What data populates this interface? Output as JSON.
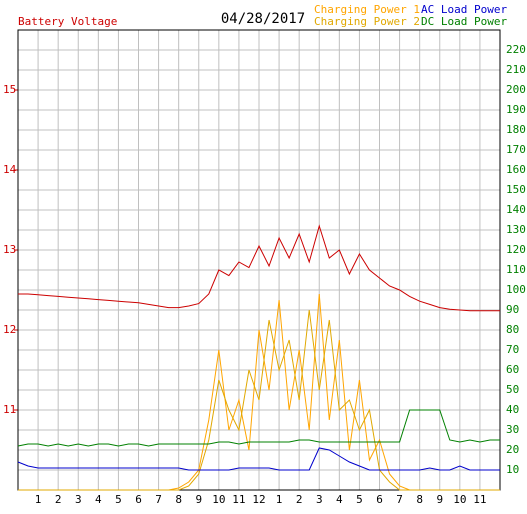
{
  "chart_data": {
    "type": "line",
    "date": "04/28/2017",
    "x": [
      0,
      0.5,
      1,
      1.5,
      2,
      2.5,
      3,
      3.5,
      4,
      4.5,
      5,
      5.5,
      6,
      6.5,
      7,
      7.5,
      8,
      8.5,
      9,
      9.5,
      10,
      10.5,
      11,
      11.5,
      12,
      12.5,
      13,
      13.5,
      14,
      14.5,
      15,
      15.5,
      16,
      16.5,
      17,
      17.5,
      18,
      18.5,
      19,
      19.5,
      20,
      20.5,
      21,
      21.5,
      22,
      22.5,
      23,
      23.5,
      24
    ],
    "xlim": [
      0,
      24
    ],
    "xticks": [
      1,
      2,
      3,
      4,
      5,
      6,
      7,
      8,
      9,
      10,
      11,
      12,
      {
        "value": 13,
        "label": "1"
      },
      {
        "value": 14,
        "label": "2"
      },
      {
        "value": 15,
        "label": "3"
      },
      {
        "value": 16,
        "label": "4"
      },
      {
        "value": 17,
        "label": "5"
      },
      {
        "value": 18,
        "label": "6"
      },
      {
        "value": 19,
        "label": "7"
      },
      {
        "value": 20,
        "label": "8"
      },
      {
        "value": 21,
        "label": "9"
      },
      {
        "value": 22,
        "label": "10"
      },
      {
        "value": 23,
        "label": "11"
      }
    ],
    "ylim": [
      10,
      15.75
    ],
    "yticks": [
      11,
      12,
      13,
      14,
      15
    ],
    "y2lim": [
      0,
      230
    ],
    "y2ticks": [
      10,
      20,
      30,
      40,
      50,
      60,
      70,
      80,
      90,
      100,
      110,
      120,
      130,
      140,
      150,
      160,
      170,
      180,
      190,
      200,
      210,
      220
    ],
    "grid": true,
    "series": [
      {
        "name": "Battery Voltage",
        "color": "#cc0000",
        "axis": "y",
        "values": [
          12.45,
          12.45,
          12.44,
          12.43,
          12.42,
          12.41,
          12.4,
          12.39,
          12.38,
          12.37,
          12.36,
          12.35,
          12.34,
          12.32,
          12.3,
          12.28,
          12.28,
          12.3,
          12.33,
          12.45,
          12.75,
          12.68,
          12.85,
          12.78,
          13.05,
          12.8,
          13.15,
          12.9,
          13.2,
          12.85,
          13.3,
          12.9,
          13.0,
          12.7,
          12.95,
          12.75,
          12.65,
          12.55,
          12.5,
          12.42,
          12.36,
          12.32,
          12.28,
          12.26,
          12.25,
          12.24,
          12.24,
          12.24,
          12.24
        ]
      },
      {
        "name": "Charging Power 1",
        "color": "#ffa500",
        "axis": "y2",
        "values": [
          0,
          0,
          0,
          0,
          0,
          0,
          0,
          0,
          0,
          0,
          0,
          0,
          0,
          0,
          0,
          0,
          1,
          4,
          10,
          35,
          70,
          30,
          45,
          20,
          80,
          50,
          95,
          40,
          70,
          30,
          98,
          35,
          75,
          20,
          55,
          15,
          25,
          8,
          2,
          0,
          0,
          0,
          0,
          0,
          0,
          0,
          0,
          0,
          0
        ]
      },
      {
        "name": "Charging Power 2",
        "color": "#e0a800",
        "axis": "y2",
        "values": [
          0,
          0,
          0,
          0,
          0,
          0,
          0,
          0,
          0,
          0,
          0,
          0,
          0,
          0,
          0,
          0,
          0,
          2,
          8,
          25,
          55,
          40,
          30,
          60,
          45,
          85,
          60,
          75,
          45,
          90,
          50,
          85,
          40,
          45,
          30,
          40,
          10,
          4,
          0,
          0,
          0,
          0,
          0,
          0,
          0,
          0,
          0,
          0,
          0
        ]
      },
      {
        "name": "AC Load Power",
        "color": "#0000cc",
        "axis": "y2",
        "values": [
          14,
          12,
          11,
          11,
          11,
          11,
          11,
          11,
          11,
          11,
          11,
          11,
          11,
          11,
          11,
          11,
          11,
          10,
          10,
          10,
          10,
          10,
          11,
          11,
          11,
          11,
          10,
          10,
          10,
          10,
          21,
          20,
          17,
          14,
          12,
          10,
          10,
          10,
          10,
          10,
          10,
          11,
          10,
          10,
          12,
          10,
          10,
          10,
          10
        ]
      },
      {
        "name": "DC Load Power",
        "color": "#008000",
        "axis": "y2",
        "values": [
          22,
          23,
          23,
          22,
          23,
          22,
          23,
          22,
          23,
          23,
          22,
          23,
          23,
          22,
          23,
          23,
          23,
          23,
          23,
          23,
          24,
          24,
          23,
          24,
          24,
          24,
          24,
          24,
          25,
          25,
          24,
          24,
          24,
          24,
          24,
          24,
          24,
          24,
          24,
          40,
          40,
          40,
          40,
          25,
          24,
          25,
          24,
          25,
          25
        ]
      }
    ]
  }
}
